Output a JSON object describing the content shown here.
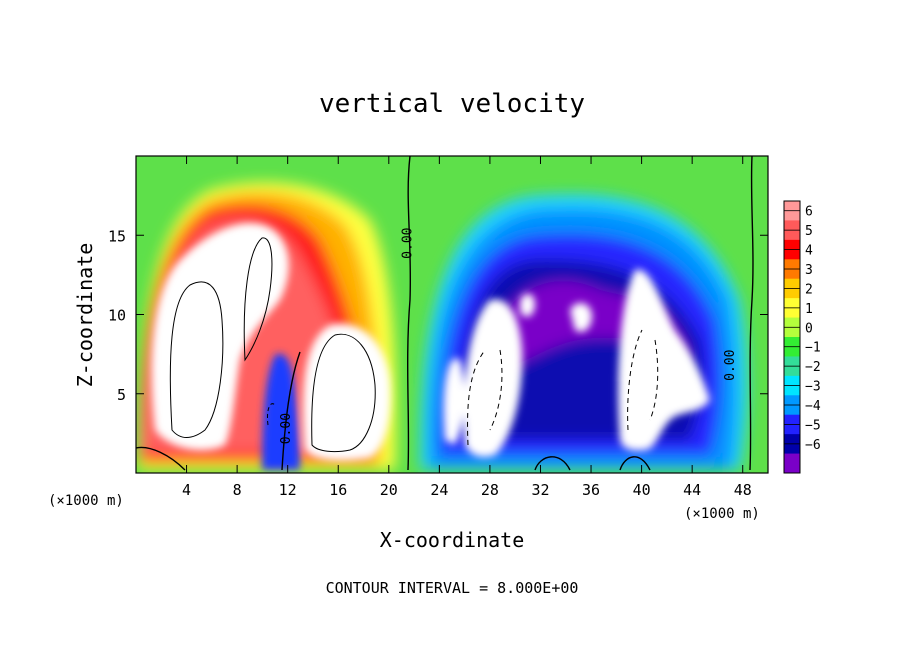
{
  "chart_data": {
    "type": "heatmap",
    "title": "vertical velocity",
    "xlabel": "X-coordinate",
    "ylabel": "Z-coordinate",
    "xunit_left": "(×1000 m)",
    "xunit_right": "(×1000 m)",
    "footer": "CONTOUR INTERVAL = 8.000E+00",
    "xlim": [
      0,
      50
    ],
    "ylim": [
      0,
      20
    ],
    "x_ticks": [
      4,
      8,
      12,
      16,
      20,
      24,
      28,
      32,
      36,
      40,
      44,
      48
    ],
    "y_ticks": [
      5,
      10,
      15
    ],
    "colorbar_ticks": [
      6,
      5,
      4,
      3,
      2,
      1,
      0,
      -1,
      -2,
      -3,
      -4,
      -5,
      -6
    ],
    "colorbar_tick_labels": [
      "6",
      "5",
      "4",
      "3",
      "2",
      "1",
      "0",
      "−1",
      "−2",
      "−3",
      "−4",
      "−5",
      "−6"
    ],
    "colorbar_colors": [
      "#ff9999",
      "#ff5a5a",
      "#ff0000",
      "#ff7a00",
      "#ffcc00",
      "#ffff33",
      "#b4ff3c",
      "#33ee33",
      "#33dd99",
      "#00e5ff",
      "#0099ff",
      "#2222ff",
      "#0000aa",
      "#7a00c8"
    ],
    "saturation_color": "#ffffff",
    "contour_labels": [
      {
        "text": "0.00",
        "x": 21.8,
        "z": 14.5
      },
      {
        "text": "0.00",
        "x": 12.2,
        "z": 2.8
      },
      {
        "text": "0.00",
        "x": 47.3,
        "z": 6.8
      }
    ]
  }
}
